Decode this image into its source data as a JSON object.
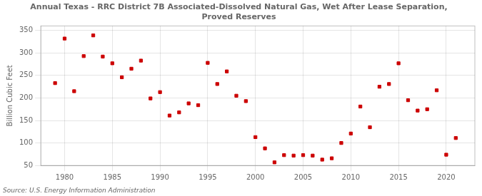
{
  "chart_data": {
    "type": "scatter",
    "title": "Annual Texas - RRC District 7B Associated-Dissolved Natural Gas, Wet After Lease Separation,\nProved Reserves",
    "ylabel": "Billion Cubic Feet",
    "source": "Source: U.S. Energy Information Administration",
    "x": [
      1979,
      1980,
      1981,
      1982,
      1983,
      1984,
      1985,
      1986,
      1987,
      1988,
      1989,
      1990,
      1991,
      1992,
      1993,
      1994,
      1995,
      1996,
      1997,
      1998,
      1999,
      2000,
      2001,
      2002,
      2003,
      2004,
      2005,
      2006,
      2007,
      2008,
      2009,
      2010,
      2011,
      2012,
      2013,
      2014,
      2015,
      2016,
      2017,
      2018,
      2019,
      2020,
      2021
    ],
    "values": [
      233,
      332,
      215,
      293,
      339,
      292,
      277,
      246,
      265,
      283,
      199,
      213,
      161,
      168,
      188,
      184,
      278,
      231,
      259,
      205,
      193,
      113,
      88,
      57,
      73,
      72,
      73,
      72,
      63,
      66,
      100,
      121,
      181,
      135,
      225,
      231,
      277,
      195,
      172,
      175,
      217,
      74,
      111
    ],
    "color": "#cc0000",
    "marker": "square",
    "xlim": [
      1977.5,
      2023
    ],
    "ylim": [
      50,
      360
    ],
    "xticks": [
      1980,
      1985,
      1990,
      1995,
      2000,
      2005,
      2010,
      2015,
      2020
    ],
    "yticks": [
      50,
      100,
      150,
      200,
      250,
      300,
      350
    ],
    "grid": true
  }
}
